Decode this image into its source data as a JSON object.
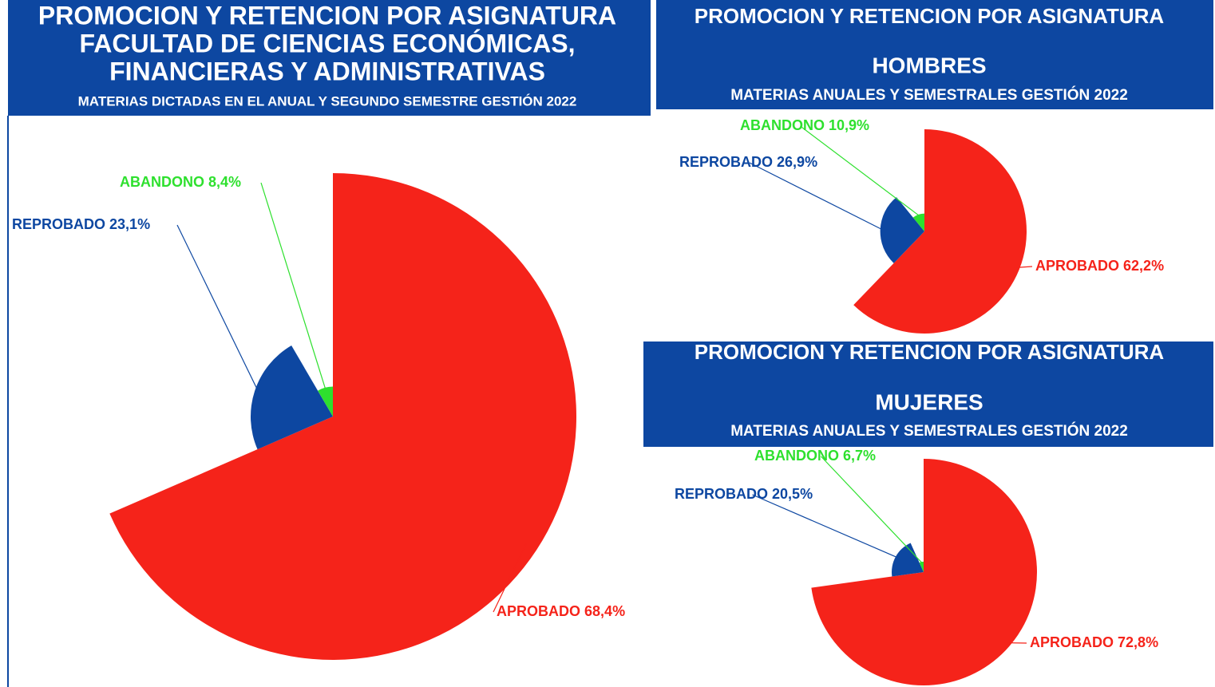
{
  "chart_data": [
    {
      "type": "pie",
      "title": [
        "PROMOCION Y RETENCION POR ASIGNATURA",
        "FACULTAD DE CIENCIAS ECONÓMICAS,",
        "FINANCIERAS Y ADMINISTRATIVAS"
      ],
      "subtitle": "MATERIAS DICTADAS EN EL ANUAL Y SEGUNDO SEMESTRE GESTIÓN 2022",
      "categories": [
        "APROBADO",
        "REPROBADO",
        "ABANDONO"
      ],
      "values": [
        68.4,
        23.1,
        8.4
      ],
      "value_labels": [
        "68,4%",
        "23,1%",
        "8,4%"
      ],
      "colors": [
        "#f5231a",
        "#0d47a1",
        "#2ee02e"
      ]
    },
    {
      "type": "pie",
      "title": [
        "PROMOCION Y RETENCION POR ASIGNATURA",
        "HOMBRES"
      ],
      "subtitle": "MATERIAS ANUALES Y SEMESTRALES GESTIÓN 2022",
      "categories": [
        "APROBADO",
        "REPROBADO",
        "ABANDONO"
      ],
      "values": [
        62.2,
        26.9,
        10.9
      ],
      "value_labels": [
        "62,2%",
        "26,9%",
        "10,9%"
      ],
      "colors": [
        "#f5231a",
        "#0d47a1",
        "#2ee02e"
      ]
    },
    {
      "type": "pie",
      "title": [
        "PROMOCION Y RETENCION POR ASIGNATURA",
        "MUJERES"
      ],
      "subtitle": "MATERIAS ANUALES Y SEMESTRALES GESTIÓN 2022",
      "categories": [
        "APROBADO",
        "REPROBADO",
        "ABANDONO"
      ],
      "values": [
        72.8,
        20.5,
        6.7
      ],
      "value_labels": [
        "72,8%",
        "20,5%",
        "6,7%"
      ],
      "colors": [
        "#f5231a",
        "#0d47a1",
        "#2ee02e"
      ]
    }
  ]
}
